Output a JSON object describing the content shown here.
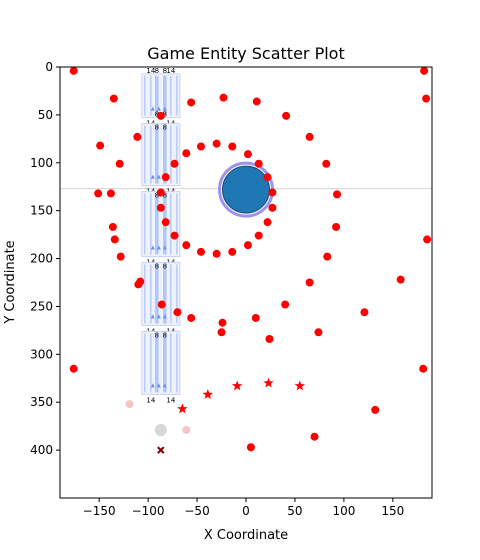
{
  "chart_data": {
    "type": "scatter",
    "title": "Game Entity Scatter Plot",
    "xlabel": "X Coordinate",
    "ylabel": "Y Coordinate",
    "xlim": [
      -190,
      190
    ],
    "ylim": [
      450,
      0
    ],
    "y_inverted": true,
    "grid": false,
    "x_ticks": [
      -150,
      -100,
      -50,
      0,
      50,
      100,
      150
    ],
    "y_ticks": [
      0,
      50,
      100,
      150,
      200,
      250,
      300,
      350,
      400
    ],
    "colors": {
      "enemy": "#ff0000",
      "player": "#1f77b4",
      "ring": "#8c7ff0",
      "entity_bar": "#aec4f7",
      "entity_box": "#c8d4f4",
      "faded": "#f4b8b8",
      "marker_x": "#8b0000",
      "grey": "#b0b0b0",
      "guide_line": "#d6d6d6"
    },
    "player": {
      "x": 0,
      "y": 128,
      "radius_units": 24
    },
    "enemies": [
      {
        "x": -176,
        "y": 4
      },
      {
        "x": 182,
        "y": 4
      },
      {
        "x": -135,
        "y": 33
      },
      {
        "x": 184,
        "y": 33
      },
      {
        "x": -56,
        "y": 37
      },
      {
        "x": -23,
        "y": 32
      },
      {
        "x": 11,
        "y": 36
      },
      {
        "x": -87,
        "y": 51
      },
      {
        "x": 41,
        "y": 51
      },
      {
        "x": -111,
        "y": 73
      },
      {
        "x": 65,
        "y": 73
      },
      {
        "x": -149,
        "y": 82
      },
      {
        "x": -46,
        "y": 83
      },
      {
        "x": -30,
        "y": 80
      },
      {
        "x": -14,
        "y": 83
      },
      {
        "x": -61,
        "y": 90
      },
      {
        "x": 2,
        "y": 91
      },
      {
        "x": -129,
        "y": 101
      },
      {
        "x": -73,
        "y": 101
      },
      {
        "x": 13,
        "y": 101
      },
      {
        "x": 82,
        "y": 101
      },
      {
        "x": -82,
        "y": 115
      },
      {
        "x": 22,
        "y": 115
      },
      {
        "x": -151,
        "y": 132
      },
      {
        "x": -138,
        "y": 132
      },
      {
        "x": -87,
        "y": 131
      },
      {
        "x": 27,
        "y": 131
      },
      {
        "x": 93,
        "y": 133
      },
      {
        "x": -87,
        "y": 147
      },
      {
        "x": 27,
        "y": 147
      },
      {
        "x": -82,
        "y": 162
      },
      {
        "x": 22,
        "y": 162
      },
      {
        "x": -136,
        "y": 167
      },
      {
        "x": 92,
        "y": 167
      },
      {
        "x": -73,
        "y": 176
      },
      {
        "x": 13,
        "y": 176
      },
      {
        "x": -134,
        "y": 180
      },
      {
        "x": 185,
        "y": 180
      },
      {
        "x": -61,
        "y": 186
      },
      {
        "x": 2,
        "y": 186
      },
      {
        "x": -46,
        "y": 193
      },
      {
        "x": -30,
        "y": 195
      },
      {
        "x": -14,
        "y": 193
      },
      {
        "x": -128,
        "y": 198
      },
      {
        "x": 83,
        "y": 198
      },
      {
        "x": 158,
        "y": 222
      },
      {
        "x": -108,
        "y": 224
      },
      {
        "x": -110,
        "y": 227
      },
      {
        "x": 65,
        "y": 225
      },
      {
        "x": -86,
        "y": 248
      },
      {
        "x": 40,
        "y": 248
      },
      {
        "x": -70,
        "y": 256
      },
      {
        "x": 121,
        "y": 256
      },
      {
        "x": -56,
        "y": 262
      },
      {
        "x": 10,
        "y": 262
      },
      {
        "x": -24,
        "y": 267
      },
      {
        "x": -25,
        "y": 277
      },
      {
        "x": 74,
        "y": 277
      },
      {
        "x": 24,
        "y": 284
      },
      {
        "x": -176,
        "y": 315
      },
      {
        "x": 181,
        "y": 315
      },
      {
        "x": 132,
        "y": 358
      },
      {
        "x": 70,
        "y": 386
      },
      {
        "x": 5,
        "y": 397
      }
    ],
    "stars": [
      {
        "x": -65,
        "y": 357
      },
      {
        "x": -39,
        "y": 342
      },
      {
        "x": -9,
        "y": 333
      },
      {
        "x": 23,
        "y": 330
      },
      {
        "x": 55,
        "y": 333
      }
    ],
    "faded_points": [
      {
        "x": -119,
        "y": 352
      },
      {
        "x": -61,
        "y": 379
      }
    ],
    "grey_point": {
      "x": -87,
      "y": 379
    },
    "x_marker": {
      "x": -87,
      "y": 400
    },
    "guide_line_y": 127,
    "entity_groups": [
      {
        "x_center": -87,
        "y_top": 5,
        "y_bottom": 57,
        "labels_top": [
          "14",
          "8",
          "8",
          "14"
        ],
        "labels_bottom": [
          "14",
          "14"
        ]
      },
      {
        "x_center": -87,
        "y_top": 57,
        "y_bottom": 128,
        "labels_top": [
          "8",
          "8"
        ],
        "labels_bottom": [
          "14",
          "14"
        ]
      },
      {
        "x_center": -87,
        "y_top": 128,
        "y_bottom": 202,
        "labels_top": [
          "8",
          "8"
        ],
        "labels_bottom": [
          "14",
          "14"
        ]
      },
      {
        "x_center": -87,
        "y_top": 202,
        "y_bottom": 274,
        "labels_top": [
          "8",
          "8"
        ],
        "labels_bottom": [
          "14",
          "14"
        ]
      },
      {
        "x_center": -87,
        "y_top": 274,
        "y_bottom": 346,
        "labels_top": [
          "8",
          "8"
        ],
        "labels_bottom": [
          "14",
          "14"
        ]
      }
    ]
  }
}
